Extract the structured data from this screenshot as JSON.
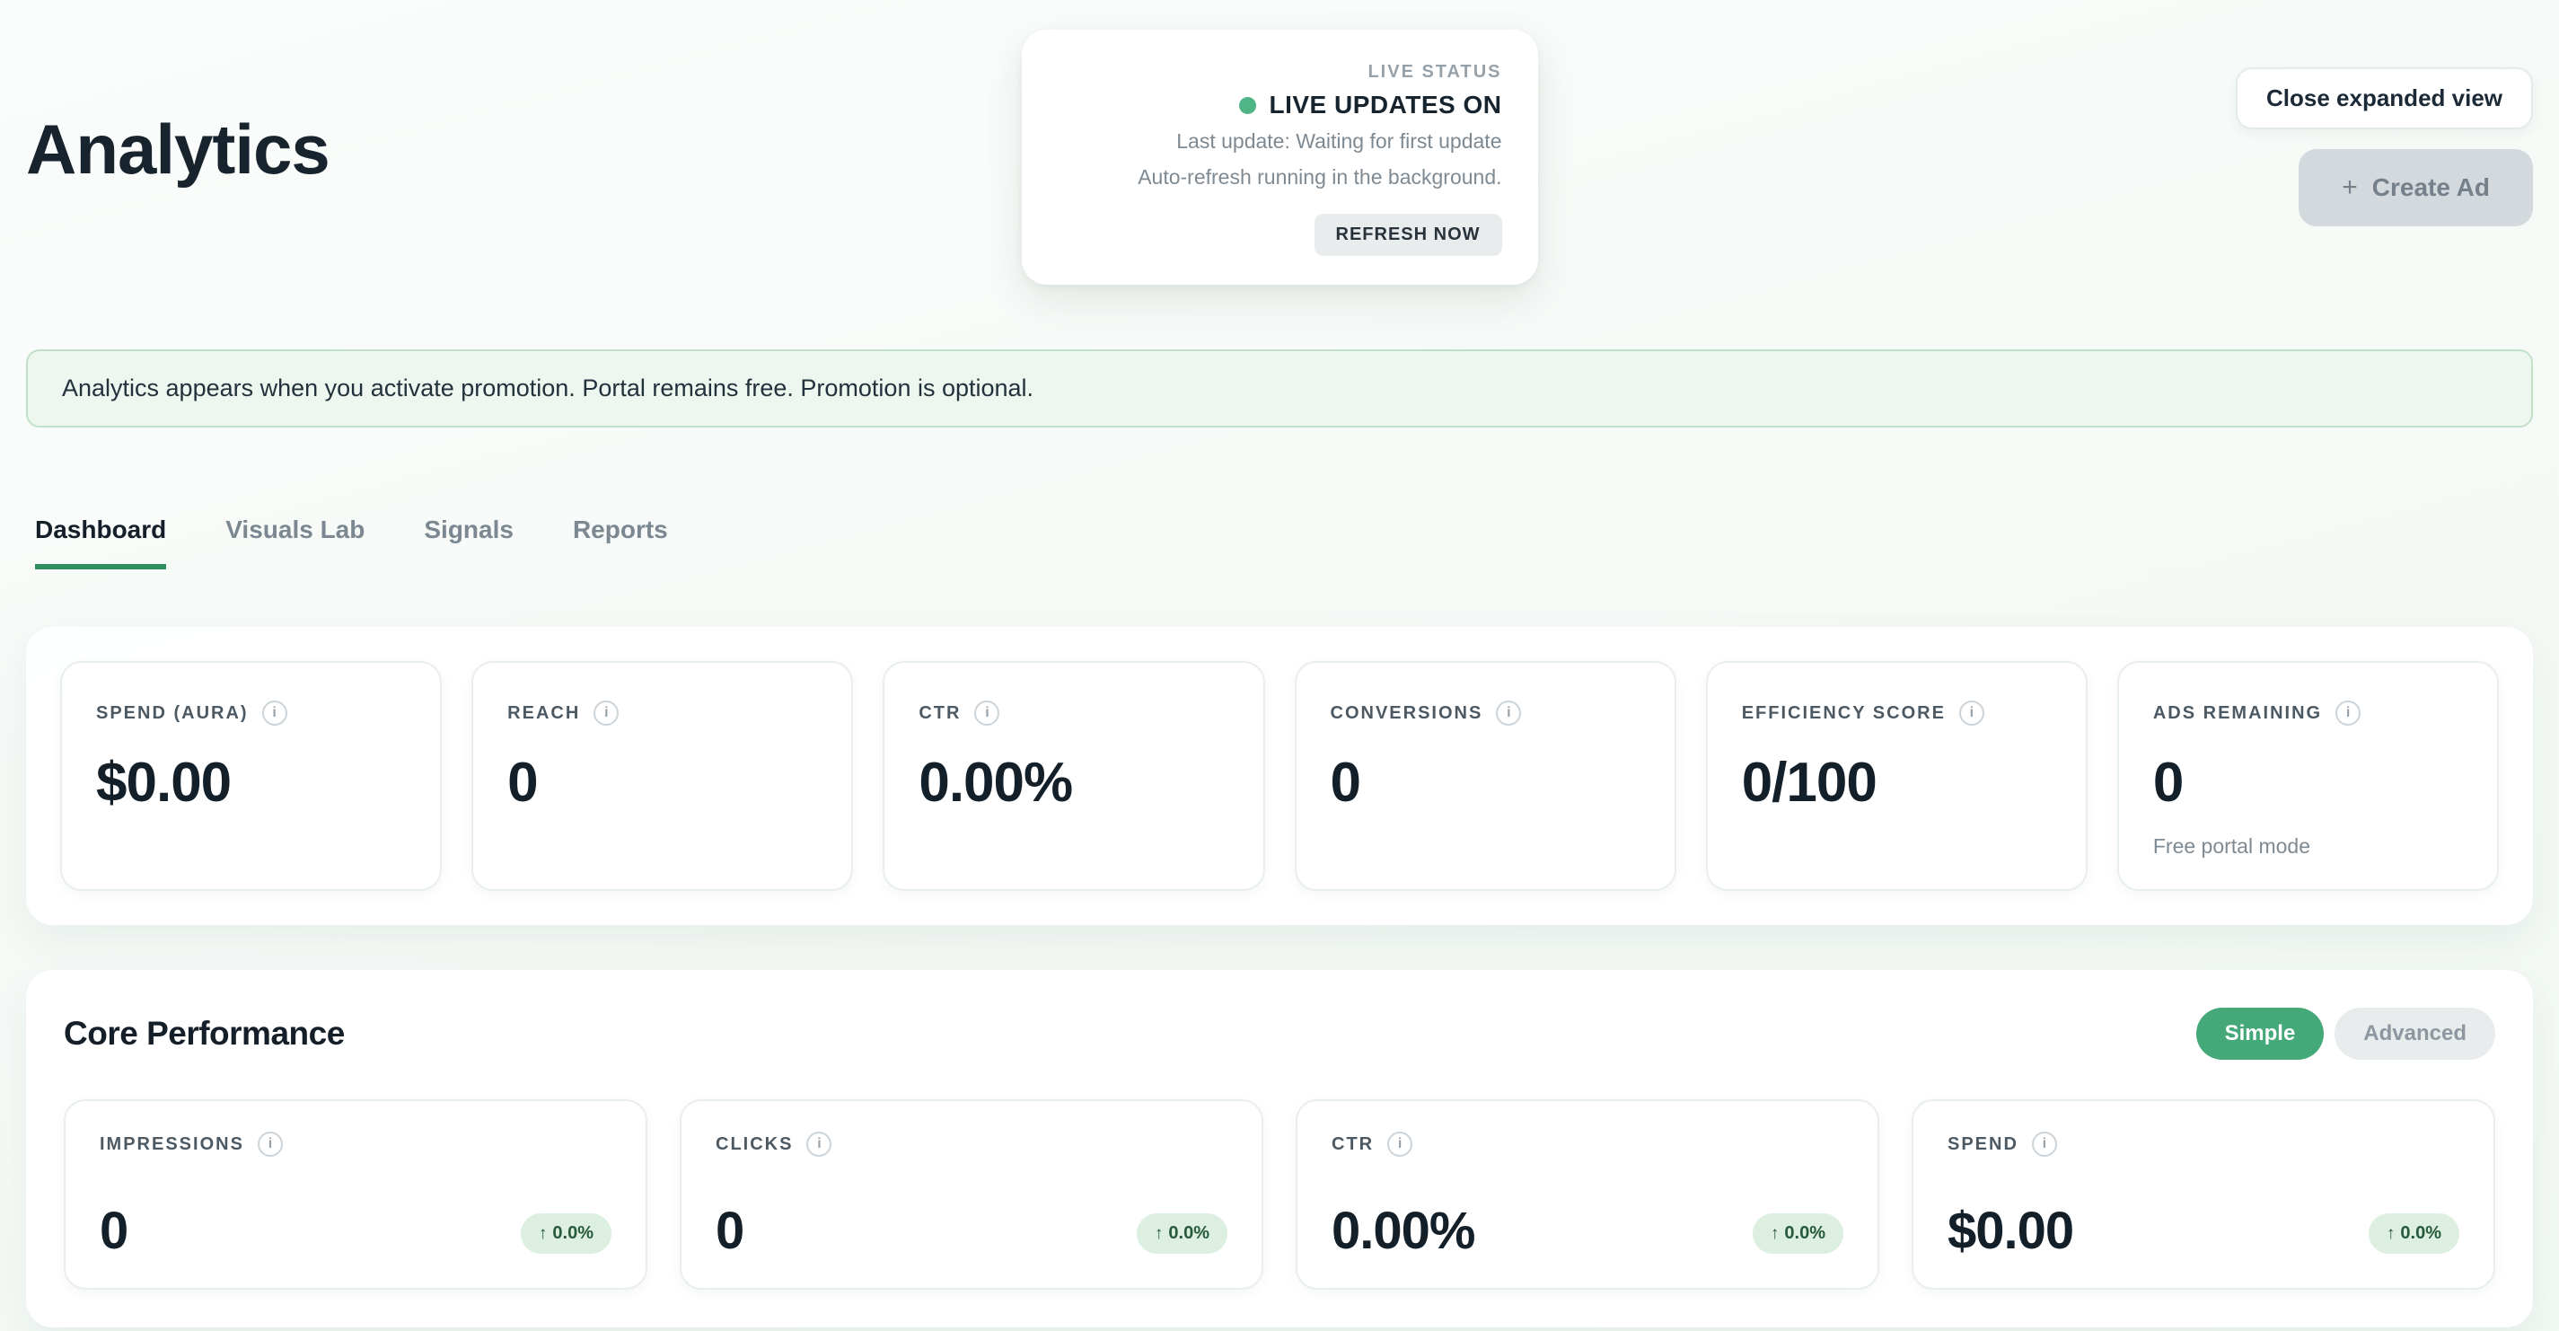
{
  "page": {
    "title": "Analytics"
  },
  "live_status": {
    "label": "LIVE STATUS",
    "status": "LIVE UPDATES ON",
    "line1": "Last update: Waiting for first update",
    "line2": "Auto-refresh running in the background.",
    "refresh_button": "REFRESH NOW"
  },
  "header_actions": {
    "close_button": "Close expanded view",
    "create_ad_button": "Create Ad"
  },
  "banner": {
    "text": "Analytics appears when you activate promotion. Portal remains free. Promotion is optional."
  },
  "tabs": [
    {
      "label": "Dashboard",
      "active": true
    },
    {
      "label": "Visuals Lab",
      "active": false
    },
    {
      "label": "Signals",
      "active": false
    },
    {
      "label": "Reports",
      "active": false
    }
  ],
  "stats": [
    {
      "label": "SPEND (AURA)",
      "value": "$0.00"
    },
    {
      "label": "REACH",
      "value": "0"
    },
    {
      "label": "CTR",
      "value": "0.00%"
    },
    {
      "label": "CONVERSIONS",
      "value": "0"
    },
    {
      "label": "EFFICIENCY SCORE",
      "value": "0/100"
    },
    {
      "label": "ADS REMAINING",
      "value": "0",
      "note": "Free portal mode"
    }
  ],
  "core_performance": {
    "title": "Core Performance",
    "toggle": {
      "simple": "Simple",
      "advanced": "Advanced"
    },
    "metrics": [
      {
        "label": "IMPRESSIONS",
        "value": "0",
        "delta": "0.0%"
      },
      {
        "label": "CLICKS",
        "value": "0",
        "delta": "0.0%"
      },
      {
        "label": "CTR",
        "value": "0.00%",
        "delta": "0.0%"
      },
      {
        "label": "SPEND",
        "value": "$0.00",
        "delta": "0.0%"
      }
    ]
  },
  "icons": {
    "info": "i",
    "trend_up": "↑",
    "plus": "+"
  },
  "colors": {
    "accent_green": "#45a878",
    "live_dot_green": "#4fb586",
    "tab_underline_green": "#2f8f5e",
    "banner_bg": "#eef7ef",
    "banner_border": "#c2e0c8",
    "badge_bg": "#dcefe0",
    "badge_text": "#27593d",
    "dark_text": "#17232d",
    "muted_text": "#7e8a93"
  }
}
